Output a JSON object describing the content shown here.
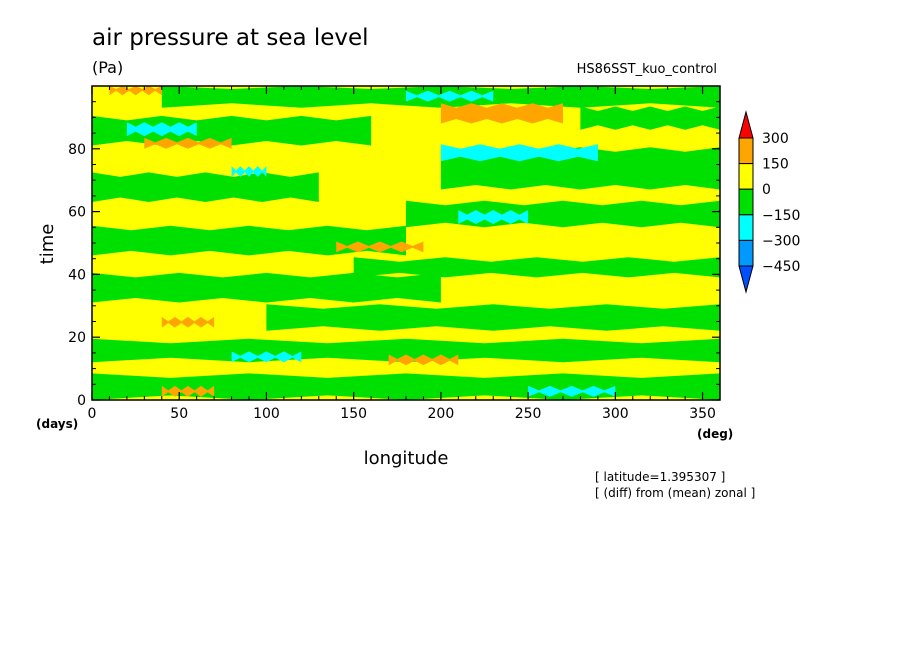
{
  "chart_data": {
    "type": "heatmap",
    "title": "air pressure at sea level",
    "units": "(Pa)",
    "dataset": "HS86SST_kuo_control",
    "xlabel": "longitude",
    "ylabel": "time",
    "x_unit": "(deg)",
    "y_unit": "(days)",
    "xlim": [
      0,
      360
    ],
    "ylim": [
      0,
      100
    ],
    "x_ticks": [
      "0",
      "50",
      "100",
      "150",
      "200",
      "250",
      "300",
      "350"
    ],
    "y_ticks": [
      "0",
      "20",
      "40",
      "60",
      "80"
    ],
    "annotations": [
      "[ latitude=1.395307 ]",
      "[ (diff) from (mean) zonal ]"
    ],
    "colorbar": {
      "labels": [
        "300",
        "150",
        "0",
        "−150",
        "−300",
        "−450"
      ],
      "levels": [
        {
          "range": "> 300",
          "color": "#ff0000"
        },
        {
          "range": "150 to 300",
          "color": "#ffa500"
        },
        {
          "range": "0 to 150",
          "color": "#ffff00"
        },
        {
          "range": "-150 to 0",
          "color": "#00e000"
        },
        {
          "range": "-300 to -150",
          "color": "#00ffff"
        },
        {
          "range": "-450 to -300",
          "color": "#0099ff"
        },
        {
          "range": "< -450",
          "color": "#0050ff"
        }
      ]
    },
    "background_level_color": "#ffff00",
    "bands": [
      {
        "level": "-150 to 0",
        "color": "#00e000",
        "t0": 1,
        "t1": 8,
        "lon0": 0,
        "lon1": 360
      },
      {
        "level": "-150 to 0",
        "color": "#00e000",
        "t0": 13,
        "t1": 19,
        "lon0": 0,
        "lon1": 360
      },
      {
        "level": "-150 to 0",
        "color": "#00e000",
        "t0": 23,
        "t1": 30,
        "lon0": 100,
        "lon1": 360
      },
      {
        "level": "-150 to 0",
        "color": "#00e000",
        "t0": 32,
        "t1": 40,
        "lon0": 0,
        "lon1": 200
      },
      {
        "level": "-150 to 0",
        "color": "#00e000",
        "t0": 40,
        "t1": 45,
        "lon0": 150,
        "lon1": 360
      },
      {
        "level": "-150 to 0",
        "color": "#00e000",
        "t0": 47,
        "t1": 55,
        "lon0": 0,
        "lon1": 180
      },
      {
        "level": "-150 to 0",
        "color": "#00e000",
        "t0": 56,
        "t1": 63,
        "lon0": 180,
        "lon1": 360
      },
      {
        "level": "-150 to 0",
        "color": "#00e000",
        "t0": 64,
        "t1": 72,
        "lon0": 0,
        "lon1": 130
      },
      {
        "level": "-150 to 0",
        "color": "#00e000",
        "t0": 68,
        "t1": 80,
        "lon0": 200,
        "lon1": 360
      },
      {
        "level": "-150 to 0",
        "color": "#00e000",
        "t0": 82,
        "t1": 90,
        "lon0": 0,
        "lon1": 160
      },
      {
        "level": "-150 to 0",
        "color": "#00e000",
        "t0": 87,
        "t1": 93,
        "lon0": 280,
        "lon1": 360
      },
      {
        "level": "-150 to 0",
        "color": "#00e000",
        "t0": 94,
        "t1": 100,
        "lon0": 40,
        "lon1": 360
      },
      {
        "level": "-300 to -150",
        "color": "#00ffff",
        "t0": 2,
        "t1": 4,
        "lon0": 250,
        "lon1": 300
      },
      {
        "level": "-300 to -150",
        "color": "#00ffff",
        "t0": 13,
        "t1": 15,
        "lon0": 80,
        "lon1": 120
      },
      {
        "level": "-300 to -150",
        "color": "#00ffff",
        "t0": 57,
        "t1": 60,
        "lon0": 210,
        "lon1": 250
      },
      {
        "level": "-300 to -150",
        "color": "#00ffff",
        "t0": 72,
        "t1": 74,
        "lon0": 80,
        "lon1": 100
      },
      {
        "level": "-300 to -150",
        "color": "#00ffff",
        "t0": 77,
        "t1": 81,
        "lon0": 200,
        "lon1": 290
      },
      {
        "level": "-300 to -150",
        "color": "#00ffff",
        "t0": 85,
        "t1": 88,
        "lon0": 20,
        "lon1": 60
      },
      {
        "level": "-300 to -150",
        "color": "#00ffff",
        "t0": 96,
        "t1": 98,
        "lon0": 180,
        "lon1": 230
      },
      {
        "level": "150 to 300",
        "color": "#ffa500",
        "t0": 2,
        "t1": 4,
        "lon0": 40,
        "lon1": 70
      },
      {
        "level": "150 to 300",
        "color": "#ffa500",
        "t0": 12,
        "t1": 14,
        "lon0": 170,
        "lon1": 210
      },
      {
        "level": "150 to 300",
        "color": "#ffa500",
        "t0": 24,
        "t1": 26,
        "lon0": 40,
        "lon1": 70
      },
      {
        "level": "150 to 300",
        "color": "#ffa500",
        "t0": 48,
        "t1": 50,
        "lon0": 140,
        "lon1": 190
      },
      {
        "level": "150 to 300",
        "color": "#ffa500",
        "t0": 81,
        "t1": 83,
        "lon0": 30,
        "lon1": 80
      },
      {
        "level": "150 to 300",
        "color": "#ffa500",
        "t0": 89,
        "t1": 94,
        "lon0": 200,
        "lon1": 270
      },
      {
        "level": "150 to 300",
        "color": "#ffa500",
        "t0": 98,
        "t1": 100,
        "lon0": 10,
        "lon1": 40
      }
    ]
  }
}
